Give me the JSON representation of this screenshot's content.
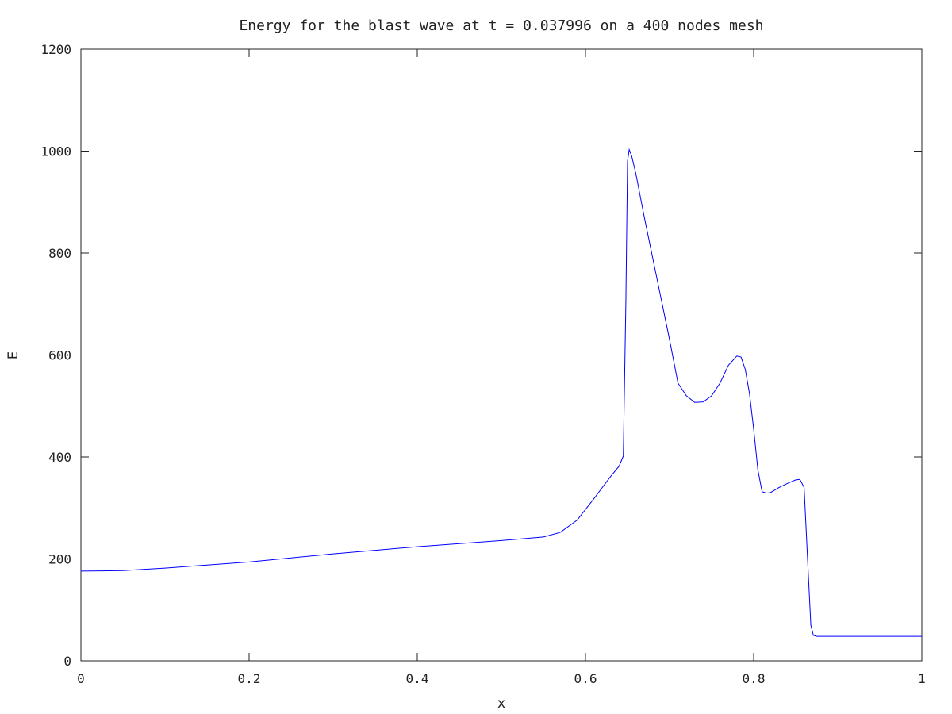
{
  "chart_data": {
    "type": "line",
    "title": "Energy for the blast wave at t = 0.037996 on a 400 nodes mesh",
    "xlabel": "x",
    "ylabel": "E",
    "xlim": [
      0,
      1
    ],
    "ylim": [
      0,
      1200
    ],
    "xticks": [
      0,
      0.2,
      0.4,
      0.6,
      0.8,
      1
    ],
    "xtick_labels": [
      "0",
      "0.2",
      "0.4",
      "0.6",
      "0.8",
      "1"
    ],
    "yticks": [
      0,
      200,
      400,
      600,
      800,
      1000,
      1200
    ],
    "ytick_labels": [
      "0",
      "200",
      "400",
      "600",
      "800",
      "1000",
      "1200"
    ],
    "grid": false,
    "legend": "none",
    "line_color": "#0000ff",
    "series": [
      {
        "x": [
          0,
          0.05,
          0.1,
          0.15,
          0.2,
          0.25,
          0.3,
          0.35,
          0.4,
          0.45,
          0.5,
          0.55,
          0.57,
          0.59,
          0.61,
          0.63,
          0.64,
          0.645,
          0.648,
          0.65,
          0.652,
          0.655,
          0.66,
          0.67,
          0.68,
          0.69,
          0.7,
          0.71,
          0.72,
          0.73,
          0.74,
          0.75,
          0.76,
          0.77,
          0.78,
          0.785,
          0.79,
          0.795,
          0.8,
          0.805,
          0.81,
          0.815,
          0.82,
          0.83,
          0.84,
          0.85,
          0.855,
          0.86,
          0.865,
          0.868,
          0.871,
          0.875,
          0.9,
          0.95,
          1.0
        ],
        "y": [
          176,
          177,
          182,
          188,
          194,
          202,
          210,
          217,
          224,
          230,
          236,
          243,
          252,
          276,
          318,
          362,
          382,
          402,
          700,
          980,
          1003,
          990,
          955,
          870,
          790,
          710,
          630,
          545,
          520,
          507,
          508,
          520,
          545,
          580,
          598,
          596,
          572,
          525,
          455,
          375,
          332,
          329,
          330,
          340,
          348,
          355,
          356,
          340,
          170,
          70,
          50,
          48,
          48,
          48,
          48
        ]
      }
    ]
  }
}
